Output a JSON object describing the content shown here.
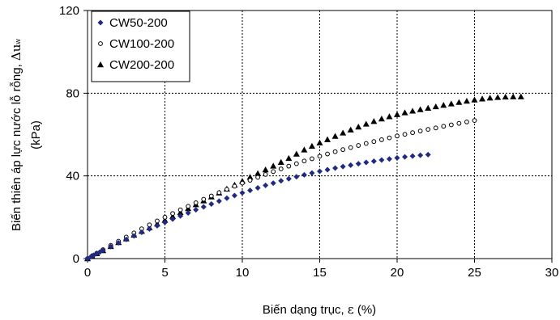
{
  "chart_data": {
    "type": "scatter",
    "xlabel_main": "Biến dạng trục, ",
    "xlabel_symbol": "ε",
    "xlabel_unit": " (%)",
    "ylabel_main": "Biến thiên áp lực nước lỗ rỗng, ",
    "ylabel_symbol": "Δu",
    "ylabel_sub": "w",
    "ylabel_unit": "(kPa)",
    "xlim": [
      0,
      30
    ],
    "ylim": [
      0,
      120
    ],
    "xticks": [
      "0",
      "5",
      "10",
      "15",
      "20",
      "25",
      "30"
    ],
    "yticks": [
      "0",
      "40",
      "80",
      "120"
    ],
    "grid": true,
    "legend_position": "top-left",
    "series": [
      {
        "name": "CW50-200",
        "marker": "diamond",
        "color": "#1f2a80",
        "x": [
          0,
          0.2,
          0.4,
          0.6,
          0.8,
          1,
          1.5,
          2,
          2.5,
          3,
          3.5,
          4,
          4.5,
          5,
          5.5,
          6,
          6.5,
          7,
          7.5,
          8,
          8.5,
          9,
          9.5,
          10,
          10.5,
          11,
          11.5,
          12,
          12.5,
          13,
          13.5,
          14,
          14.5,
          15,
          15.5,
          16,
          16.5,
          17,
          17.5,
          18,
          18.5,
          19,
          19.5,
          20,
          20.5,
          21,
          21.5,
          22
        ],
        "y": [
          0,
          0.8,
          1.6,
          2.4,
          3.2,
          4,
          5.8,
          7.6,
          9.3,
          11,
          12.7,
          14.3,
          15.9,
          17.5,
          19.1,
          20.6,
          22.1,
          23.6,
          25,
          26.4,
          27.8,
          29.2,
          30.5,
          31.8,
          33,
          34.2,
          35.4,
          36.5,
          37.6,
          38.6,
          39.6,
          40.5,
          41.4,
          42.2,
          43,
          43.8,
          44.5,
          45.2,
          45.9,
          46.5,
          47.1,
          47.7,
          48.2,
          48.7,
          49.2,
          49.6,
          50,
          50.3
        ]
      },
      {
        "name": "CW100-200",
        "marker": "circle-open",
        "color": "#000000",
        "x": [
          0,
          0.3,
          0.6,
          1,
          1.5,
          2,
          2.5,
          3,
          3.5,
          4,
          4.5,
          5,
          5.5,
          6,
          6.5,
          7,
          7.5,
          8,
          8.5,
          9,
          9.5,
          10,
          10.5,
          11,
          11.5,
          12,
          12.5,
          13,
          13.5,
          14,
          14.5,
          15,
          15.5,
          16,
          16.5,
          17,
          17.5,
          18,
          18.5,
          19,
          19.5,
          20,
          20.5,
          21,
          21.5,
          22,
          22.5,
          23,
          23.5,
          24,
          24.5,
          25
        ],
        "y": [
          0,
          1.3,
          2.6,
          4.3,
          6.4,
          8.4,
          10.4,
          12.4,
          14.4,
          16.3,
          18.2,
          20,
          21.8,
          23.6,
          25.3,
          27,
          28.7,
          30.3,
          31.9,
          33.5,
          35,
          36.5,
          37.9,
          39.3,
          40.7,
          42.1,
          43.4,
          44.7,
          45.9,
          47.2,
          48.3,
          49.5,
          50.6,
          51.7,
          52.7,
          53.7,
          54.7,
          55.7,
          56.6,
          57.5,
          58.4,
          59.3,
          60.1,
          60.9,
          61.7,
          62.5,
          63.2,
          64,
          64.7,
          65.4,
          66.1,
          66.8
        ]
      },
      {
        "name": "CW200-200",
        "marker": "triangle",
        "color": "#000000",
        "x": [
          0,
          0.3,
          0.6,
          1,
          1.5,
          2,
          2.5,
          3,
          3.5,
          4,
          4.5,
          5,
          5.5,
          6,
          6.5,
          7,
          7.5,
          8,
          8.5,
          9,
          9.5,
          10,
          10.5,
          11,
          11.5,
          12,
          12.5,
          13,
          13.5,
          14,
          14.5,
          15,
          15.5,
          16,
          16.5,
          17,
          17.5,
          18,
          18.5,
          19,
          19.5,
          20,
          20.5,
          21,
          21.5,
          22,
          22.5,
          23,
          23.5,
          24,
          24.5,
          25,
          25.5,
          26,
          26.5,
          27,
          27.5,
          28
        ],
        "y": [
          0,
          1.2,
          2.4,
          3.9,
          5.9,
          7.8,
          9.6,
          11.4,
          13.2,
          15,
          16.8,
          18.6,
          20.4,
          22.3,
          24.2,
          26.1,
          28,
          29.9,
          31.8,
          33.7,
          35.6,
          37.5,
          39.4,
          41.2,
          43,
          44.8,
          46.6,
          48.5,
          50.6,
          52.6,
          54.4,
          56,
          57.6,
          59.2,
          60.8,
          62.3,
          63.7,
          65.1,
          66.4,
          67.6,
          68.7,
          69.7,
          70.6,
          71.4,
          72.1,
          72.8,
          73.5,
          74.2,
          74.9,
          75.6,
          76.2,
          76.8,
          77.3,
          77.7,
          78,
          78.2,
          78.3,
          78.3
        ]
      }
    ]
  }
}
